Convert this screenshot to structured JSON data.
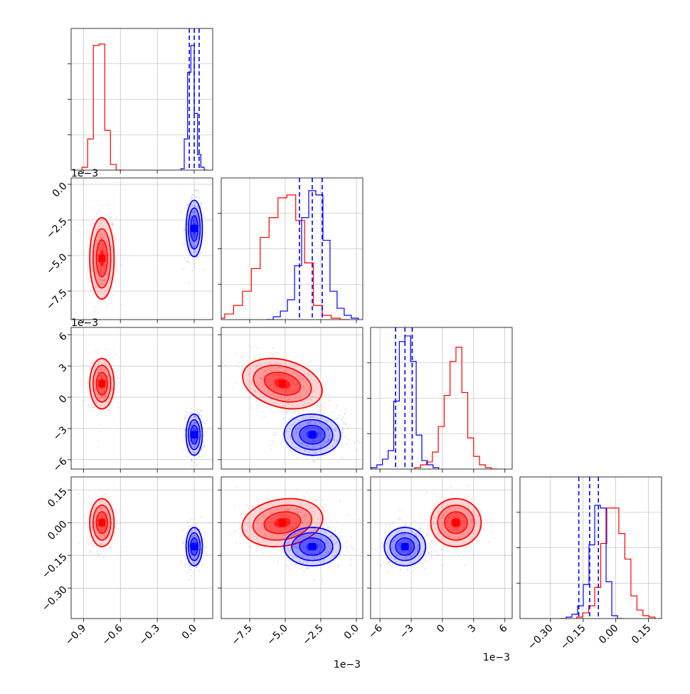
{
  "colors": {
    "series_a": "#ff0000",
    "series_b": "#0000ff",
    "grid": "#b0b0b0",
    "frame": "#000000"
  },
  "chart_data": {
    "type": "corner",
    "description_of_layout": "lower-triangular corner plot: 1D histograms on diagonal, 2D density contours + scatter below diagonal",
    "grid": true,
    "series": [
      {
        "color": "red",
        "param_centers": [
          -0.75,
          -0.0052,
          0.0013,
          0.0
        ],
        "param_sigmas": [
          0.045,
          0.0013,
          0.0011,
          0.05
        ],
        "hist_heights": [
          [
            0.02,
            0.22,
            0.88,
            0.89,
            0.28,
            0.04,
            0.0
          ],
          [
            0.01,
            0.04,
            0.1,
            0.2,
            0.36,
            0.58,
            0.72,
            0.86,
            0.88,
            0.7,
            0.4,
            0.1,
            0.03,
            0.01,
            0.0
          ],
          [
            0.01,
            0.03,
            0.05,
            0.12,
            0.3,
            0.52,
            0.76,
            0.86,
            0.54,
            0.22,
            0.09,
            0.03,
            0.01,
            0.0
          ],
          [
            0.01,
            0.04,
            0.09,
            0.22,
            0.53,
            0.78,
            0.78,
            0.6,
            0.42,
            0.16,
            0.06,
            0.02,
            0.01
          ]
        ]
      },
      {
        "color": "blue",
        "param_centers": [
          0.0,
          -0.0031,
          -0.0036,
          -0.11
        ],
        "param_sigmas": [
          0.03,
          0.0009,
          0.0009,
          0.04
        ],
        "hist_heights": [
          [
            0.01,
            0.22,
            0.69,
            0.88,
            0.4,
            0.11,
            0.02,
            0.0
          ],
          [
            0.0,
            0.02,
            0.06,
            0.14,
            0.38,
            0.72,
            0.91,
            0.88,
            0.56,
            0.2,
            0.08,
            0.03,
            0.01
          ],
          [
            0.01,
            0.03,
            0.07,
            0.13,
            0.48,
            0.9,
            0.94,
            0.76,
            0.24,
            0.06,
            0.03,
            0.01
          ],
          [
            0.0,
            0.01,
            0.03,
            0.09,
            0.24,
            0.52,
            0.8,
            0.78,
            0.26,
            0.02,
            0.0
          ]
        ],
        "quantiles": [
          [
            -0.04,
            0.0,
            0.04
          ],
          [
            -0.004,
            -0.0031,
            -0.0024
          ],
          [
            -0.0045,
            -0.0036,
            -0.0029
          ],
          [
            -0.17,
            -0.12,
            -0.08
          ]
        ]
      }
    ],
    "axes": [
      {
        "xlim": [
          -1.0,
          0.15
        ],
        "tick_values": [
          -0.9,
          -0.6,
          -0.3,
          0.0
        ],
        "tick_labels": [
          "−0.9",
          "−0.6",
          "−0.3",
          "0.0"
        ]
      },
      {
        "xlim": [
          -0.0095,
          0.00045
        ],
        "ylim": [
          -0.0095,
          0.00045
        ],
        "tick_values": [
          -0.0075,
          -0.005,
          -0.0025,
          0.0
        ],
        "tick_labels": [
          "−7.5",
          "−5.0",
          "−2.5",
          "0.0"
        ],
        "offset_label": "1e−3"
      },
      {
        "xlim": [
          -0.0069,
          0.0067
        ],
        "ylim": [
          -0.0069,
          0.0067
        ],
        "tick_values": [
          -0.006,
          -0.003,
          0.0,
          0.003,
          0.006
        ],
        "tick_labels": [
          "−6",
          "−3",
          "0",
          "3",
          "6"
        ],
        "offset_label": "1e−3"
      },
      {
        "xlim": [
          -0.44,
          0.21
        ],
        "ylim": [
          -0.44,
          0.21
        ],
        "tick_values": [
          -0.3,
          -0.15,
          0.0,
          0.15
        ],
        "tick_labels": [
          "−0.30",
          "−0.15",
          "0.00",
          "0.15"
        ]
      }
    ],
    "offset_labels": {
      "row1_y": "1e−3",
      "row2_y": "1e−3",
      "col1_x": "1e−3",
      "col2_x": "1e−3"
    }
  }
}
